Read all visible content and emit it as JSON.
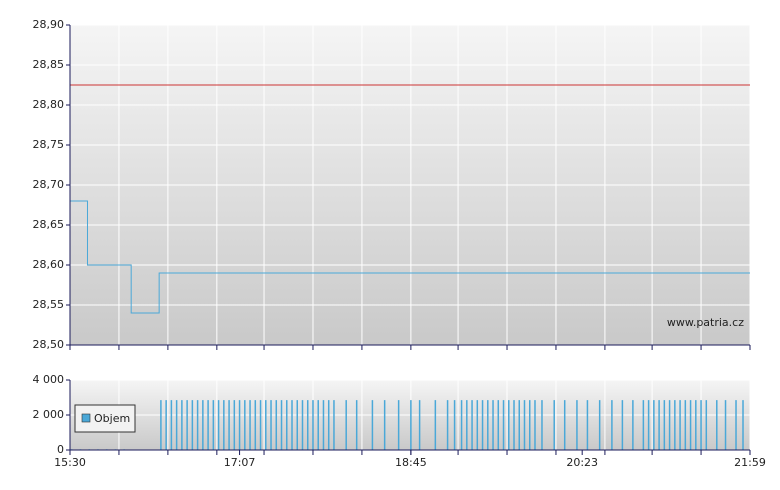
{
  "chart_data": [
    {
      "type": "step-line",
      "watermark": "www.patria.cz",
      "xlim": [
        930,
        1319
      ],
      "xgrid": [
        930,
        958,
        986,
        1014,
        1041,
        1069,
        1097,
        1125,
        1152,
        1180,
        1208,
        1236,
        1263,
        1291,
        1319
      ],
      "ylim": [
        28.5,
        28.9
      ],
      "yticks": [
        {
          "value": 28.5,
          "label": "28,50"
        },
        {
          "value": 28.55,
          "label": "28,55"
        },
        {
          "value": 28.6,
          "label": "28,60"
        },
        {
          "value": 28.65,
          "label": "28,65"
        },
        {
          "value": 28.7,
          "label": "28,70"
        },
        {
          "value": 28.75,
          "label": "28,75"
        },
        {
          "value": 28.8,
          "label": "28,80"
        },
        {
          "value": 28.85,
          "label": "28,85"
        },
        {
          "value": 28.9,
          "label": "28,90"
        }
      ],
      "grid": true,
      "reference_line": {
        "value": 28.825,
        "color": "#cc3333"
      },
      "series": [
        {
          "color": "#4aa8d8",
          "x": [
            930,
            940,
            965,
            981,
            1319
          ],
          "values": [
            28.68,
            28.6,
            28.54,
            28.59,
            28.59
          ]
        }
      ]
    },
    {
      "type": "bar",
      "xlim": [
        930,
        1319
      ],
      "xgrid": [
        930,
        958,
        986,
        1014,
        1041,
        1069,
        1097,
        1125,
        1152,
        1180,
        1208,
        1236,
        1263,
        1291,
        1319
      ],
      "xticks": [
        {
          "value": 930,
          "label": "15:30"
        },
        {
          "value": 1027,
          "label": "17:07"
        },
        {
          "value": 1125,
          "label": "18:45"
        },
        {
          "value": 1223,
          "label": "20:23"
        },
        {
          "value": 1319,
          "label": "21:59"
        }
      ],
      "ylim": [
        0,
        4000
      ],
      "yticks": [
        0,
        {
          "value": 2000,
          "label": "2 000"
        },
        {
          "value": 4000,
          "label": "4 000"
        }
      ],
      "grid": true,
      "legend": "top-left",
      "series": [
        {
          "name": "Objem",
          "color": "#4aa8d8",
          "x": [
            931,
            936,
            941,
            946,
            951,
            956,
            961,
            982,
            985,
            988,
            991,
            994,
            997,
            1000,
            1003,
            1006,
            1009,
            1012,
            1015,
            1018,
            1021,
            1024,
            1027,
            1030,
            1033,
            1036,
            1039,
            1042,
            1045,
            1048,
            1051,
            1054,
            1057,
            1060,
            1063,
            1066,
            1069,
            1072,
            1075,
            1078,
            1081,
            1088,
            1094,
            1103,
            1110,
            1118,
            1125,
            1130,
            1139,
            1146,
            1150,
            1154,
            1157,
            1160,
            1163,
            1166,
            1169,
            1172,
            1175,
            1178,
            1181,
            1184,
            1187,
            1190,
            1193,
            1196,
            1200,
            1207,
            1213,
            1220,
            1226,
            1233,
            1240,
            1246,
            1252,
            1258,
            1261,
            1264,
            1267,
            1270,
            1273,
            1276,
            1279,
            1282,
            1285,
            1288,
            1291,
            1294,
            1300,
            1305,
            1311,
            1315
          ],
          "values": [
            40,
            40,
            40,
            40,
            40,
            40,
            40,
            2850,
            2850,
            2850,
            2850,
            2850,
            2850,
            2850,
            2850,
            2850,
            2850,
            2850,
            2850,
            2850,
            2850,
            2850,
            2850,
            2850,
            2850,
            2850,
            2850,
            2850,
            2850,
            2850,
            2850,
            2850,
            2850,
            2850,
            2850,
            2850,
            2850,
            2850,
            2850,
            2850,
            2850,
            2850,
            2850,
            2850,
            2850,
            2850,
            2850,
            2850,
            2850,
            2850,
            2850,
            2850,
            2850,
            2850,
            2850,
            2850,
            2850,
            2850,
            2850,
            2850,
            2850,
            2850,
            2850,
            2850,
            2850,
            2850,
            2850,
            2850,
            2850,
            2850,
            2850,
            2850,
            2850,
            2850,
            2850,
            2850,
            2850,
            2850,
            2850,
            2850,
            2850,
            2850,
            2850,
            2850,
            2850,
            2850,
            2850,
            2850,
            2850,
            2850,
            2850,
            2850
          ]
        }
      ]
    }
  ]
}
